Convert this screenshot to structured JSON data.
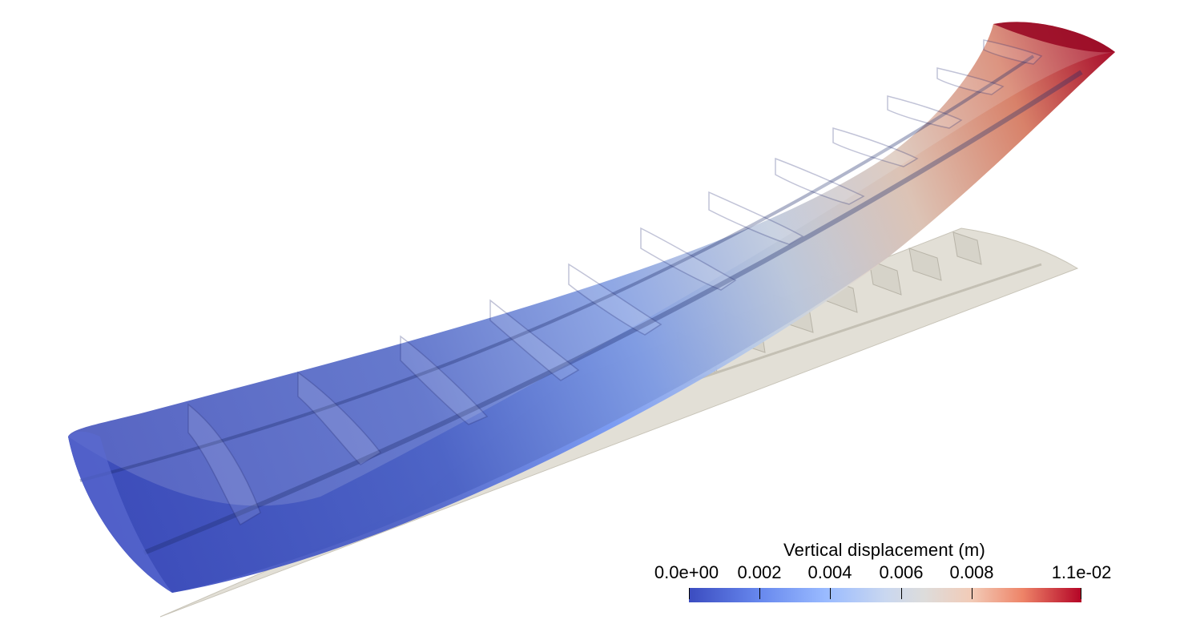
{
  "colorbar": {
    "title": "Vertical displacement (m)",
    "min": 0.0,
    "max": 0.011,
    "tick_labels": [
      "0.0e+00",
      "0.002",
      "0.004",
      "0.006",
      "0.008",
      "1.1e-02"
    ],
    "tick_values": [
      0.0,
      0.002,
      0.004,
      0.006,
      0.008,
      0.011
    ],
    "colormap": [
      "#3b4cc0",
      "#7396f5",
      "#b0cbfc",
      "#dddddd",
      "#f6bfa6",
      "#ea7b60",
      "#b40426"
    ],
    "colormap_name": "coolwarm"
  },
  "scene": {
    "deformed_wing_colors": {
      "root": "#3b4cc0",
      "tip": "#b40426"
    },
    "undeformed_wing_color": "#d8d4c8",
    "background": "#ffffff"
  }
}
